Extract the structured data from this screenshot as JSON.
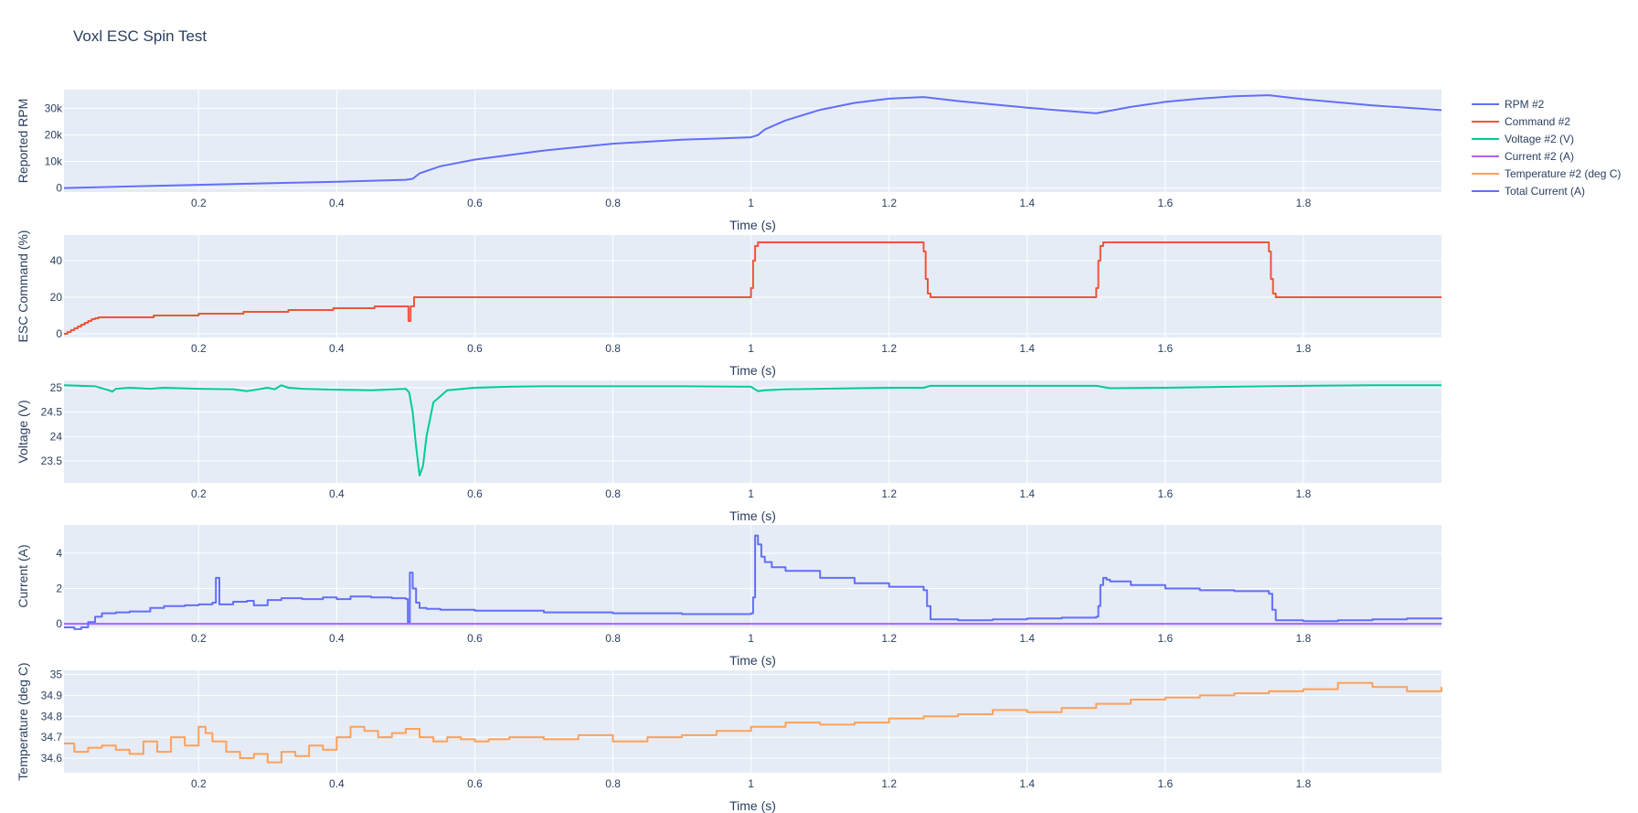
{
  "chart_data": {
    "title": "Voxl ESC Spin Test",
    "type": "line",
    "legend": {
      "placement": "right",
      "entries": [
        {
          "name": "RPM #2",
          "color": "#636efa"
        },
        {
          "name": "Command #2",
          "color": "#ef553b"
        },
        {
          "name": "Voltage #2 (V)",
          "color": "#00cc96"
        },
        {
          "name": "Current #2 (A)",
          "color": "#ab63fa"
        },
        {
          "name": "Temperature #2 (deg C)",
          "color": "#ffa15a"
        },
        {
          "name": "Total Current (A)",
          "color": "#636efa"
        }
      ]
    },
    "grid": true,
    "x_ticks": [
      "0.2",
      "0.4",
      "0.6",
      "0.8",
      "1",
      "1.2",
      "1.4",
      "1.6",
      "1.8"
    ],
    "x_range": [
      0.005,
      2.0
    ],
    "subplots": [
      {
        "ylabel": "Reported RPM",
        "xlabel": "Time (s)",
        "ylim": [
          -1500,
          37000
        ],
        "y_ticks": [
          {
            "value": 0,
            "label": "0"
          },
          {
            "value": 10000,
            "label": "10k"
          },
          {
            "value": 20000,
            "label": "20k"
          },
          {
            "value": 30000,
            "label": "30k"
          }
        ],
        "series": [
          {
            "name": "RPM #2",
            "color": "#636efa",
            "shape": "linear",
            "x": [
              0.005,
              0.1,
              0.2,
              0.3,
              0.4,
              0.5,
              0.51,
              0.52,
              0.55,
              0.6,
              0.7,
              0.8,
              0.9,
              0.95,
              1.0,
              1.01,
              1.02,
              1.05,
              1.1,
              1.15,
              1.2,
              1.25,
              1.3,
              1.4,
              1.5,
              1.55,
              1.6,
              1.65,
              1.7,
              1.75,
              1.8,
              1.9,
              2.0
            ],
            "y": [
              0,
              600,
              1200,
              1800,
              2400,
              3100,
              3500,
              5500,
              8200,
              10700,
              14100,
              16700,
              18200,
              18600,
              19100,
              19900,
              22000,
              25400,
              29400,
              32000,
              33600,
              34200,
              32700,
              30200,
              28100,
              30500,
              32400,
              33600,
              34500,
              34900,
              33400,
              31100,
              29300
            ]
          }
        ]
      },
      {
        "ylabel": "ESC Command (%)",
        "xlabel": "Time (s)",
        "ylim": [
          -2,
          54
        ],
        "y_ticks": [
          {
            "value": 0,
            "label": "0"
          },
          {
            "value": 20,
            "label": "20"
          },
          {
            "value": 40,
            "label": "40"
          }
        ],
        "series": [
          {
            "name": "Command #2",
            "color": "#ef553b",
            "shape": "hv",
            "x": [
              0.005,
              0.01,
              0.015,
              0.02,
              0.025,
              0.03,
              0.035,
              0.04,
              0.045,
              0.05,
              0.055,
              0.06,
              0.07,
              0.135,
              0.2,
              0.265,
              0.33,
              0.395,
              0.455,
              0.504,
              0.507,
              0.512,
              1.0,
              1.003,
              1.006,
              1.01,
              1.25,
              1.253,
              1.256,
              1.26,
              1.5,
              1.503,
              1.506,
              1.51,
              1.75,
              1.753,
              1.756,
              1.76,
              2.0
            ],
            "y": [
              0,
              1,
              2,
              3,
              4,
              5,
              6,
              7,
              8,
              8.5,
              9,
              9,
              9,
              10,
              11,
              12,
              13,
              14,
              15,
              7,
              15,
              20,
              25,
              40,
              48,
              50,
              45,
              30,
              22,
              20,
              25,
              40,
              48,
              50,
              45,
              30,
              22,
              20,
              20
            ]
          }
        ]
      },
      {
        "ylabel": "Voltage (V)",
        "xlabel": "Time (s)",
        "ylim": [
          23.05,
          25.15
        ],
        "y_ticks": [
          {
            "value": 23.5,
            "label": "23.5"
          },
          {
            "value": 24,
            "label": "24"
          },
          {
            "value": 24.5,
            "label": "24.5"
          },
          {
            "value": 25,
            "label": "25"
          }
        ],
        "series": [
          {
            "name": "Voltage #2 (V)",
            "color": "#00cc96",
            "shape": "linear",
            "x": [
              0.005,
              0.05,
              0.07,
              0.075,
              0.08,
              0.1,
              0.13,
              0.15,
              0.2,
              0.25,
              0.27,
              0.3,
              0.31,
              0.32,
              0.33,
              0.35,
              0.4,
              0.45,
              0.5,
              0.505,
              0.51,
              0.515,
              0.52,
              0.525,
              0.53,
              0.54,
              0.56,
              0.6,
              0.65,
              0.7,
              0.8,
              0.9,
              1.0,
              1.01,
              1.02,
              1.05,
              1.1,
              1.2,
              1.25,
              1.26,
              1.4,
              1.5,
              1.52,
              1.6,
              1.7,
              1.75,
              1.8,
              1.9,
              2.0
            ],
            "y": [
              25.05,
              25.03,
              24.95,
              24.92,
              24.98,
              25.0,
              24.98,
              25.0,
              24.98,
              24.97,
              24.93,
              25.0,
              24.97,
              25.05,
              25.0,
              24.98,
              24.96,
              24.95,
              24.98,
              24.9,
              24.5,
              23.8,
              23.2,
              23.4,
              24.0,
              24.7,
              24.95,
              25.0,
              25.02,
              25.03,
              25.03,
              25.03,
              25.02,
              24.93,
              24.95,
              24.97,
              24.98,
              25.0,
              25.0,
              25.04,
              25.04,
              25.04,
              24.99,
              25.0,
              25.02,
              25.03,
              25.04,
              25.05,
              25.05
            ]
          }
        ]
      },
      {
        "ylabel": "Current (A)",
        "xlabel": "Time (s)",
        "ylim": [
          -0.2,
          5.6
        ],
        "y_ticks": [
          {
            "value": 0,
            "label": "0"
          },
          {
            "value": 2,
            "label": "2"
          },
          {
            "value": 4,
            "label": "4"
          }
        ],
        "series": [
          {
            "name": "Current #2 (A)",
            "color": "#ab63fa",
            "shape": "linear",
            "x": [
              0.005,
              2.0
            ],
            "y": [
              0,
              0
            ]
          },
          {
            "name": "Total Current (A)",
            "color": "#636efa",
            "shape": "hv",
            "x": [
              0.005,
              0.02,
              0.03,
              0.04,
              0.05,
              0.06,
              0.08,
              0.1,
              0.13,
              0.15,
              0.18,
              0.2,
              0.22,
              0.225,
              0.23,
              0.25,
              0.27,
              0.28,
              0.3,
              0.32,
              0.35,
              0.38,
              0.4,
              0.42,
              0.45,
              0.48,
              0.5,
              0.503,
              0.506,
              0.51,
              0.515,
              0.52,
              0.53,
              0.55,
              0.6,
              0.7,
              0.8,
              0.9,
              1.0,
              1.003,
              1.006,
              1.01,
              1.015,
              1.02,
              1.03,
              1.05,
              1.1,
              1.15,
              1.2,
              1.25,
              1.255,
              1.26,
              1.3,
              1.35,
              1.4,
              1.45,
              1.5,
              1.503,
              1.506,
              1.51,
              1.515,
              1.52,
              1.55,
              1.6,
              1.65,
              1.7,
              1.75,
              1.755,
              1.76,
              1.8,
              1.85,
              1.9,
              1.95,
              2.0
            ],
            "y": [
              -0.2,
              -0.3,
              -0.2,
              0.1,
              0.4,
              0.6,
              0.65,
              0.7,
              0.9,
              1.0,
              1.05,
              1.1,
              1.2,
              2.6,
              1.1,
              1.25,
              1.3,
              1.05,
              1.35,
              1.45,
              1.4,
              1.5,
              1.4,
              1.55,
              1.5,
              1.45,
              1.4,
              0.1,
              2.9,
              2.0,
              1.2,
              0.9,
              0.85,
              0.8,
              0.75,
              0.65,
              0.6,
              0.55,
              0.6,
              1.5,
              5.0,
              4.5,
              3.8,
              3.5,
              3.2,
              3.0,
              2.6,
              2.3,
              2.1,
              1.9,
              1.0,
              0.25,
              0.2,
              0.25,
              0.3,
              0.35,
              0.4,
              1.0,
              2.2,
              2.6,
              2.5,
              2.4,
              2.2,
              2.0,
              1.9,
              1.85,
              1.7,
              0.8,
              0.2,
              0.15,
              0.2,
              0.25,
              0.3,
              0.35
            ]
          }
        ]
      },
      {
        "ylabel": "Temperature (deg C)",
        "xlabel": "Time (s)",
        "ylim": [
          34.53,
          35.02
        ],
        "y_ticks": [
          {
            "value": 34.6,
            "label": "34.6"
          },
          {
            "value": 34.7,
            "label": "34.7"
          },
          {
            "value": 34.8,
            "label": "34.8"
          },
          {
            "value": 34.9,
            "label": "34.9"
          },
          {
            "value": 35,
            "label": "35"
          }
        ],
        "series": [
          {
            "name": "Temperature #2 (deg C)",
            "color": "#ffa15a",
            "shape": "hv",
            "x": [
              0.005,
              0.02,
              0.04,
              0.06,
              0.08,
              0.1,
              0.12,
              0.14,
              0.16,
              0.18,
              0.2,
              0.21,
              0.22,
              0.24,
              0.26,
              0.28,
              0.3,
              0.32,
              0.34,
              0.36,
              0.38,
              0.4,
              0.42,
              0.44,
              0.46,
              0.48,
              0.5,
              0.52,
              0.54,
              0.56,
              0.58,
              0.6,
              0.62,
              0.65,
              0.7,
              0.75,
              0.8,
              0.85,
              0.9,
              0.95,
              1.0,
              1.05,
              1.1,
              1.15,
              1.2,
              1.25,
              1.3,
              1.35,
              1.4,
              1.45,
              1.5,
              1.55,
              1.6,
              1.65,
              1.7,
              1.75,
              1.8,
              1.85,
              1.9,
              1.95,
              2.0
            ],
            "y": [
              34.67,
              34.63,
              34.65,
              34.66,
              34.64,
              34.62,
              34.68,
              34.63,
              34.7,
              34.66,
              34.75,
              34.72,
              34.68,
              34.63,
              34.6,
              34.62,
              34.58,
              34.63,
              34.61,
              34.66,
              34.64,
              34.7,
              34.75,
              34.73,
              34.7,
              34.72,
              34.74,
              34.7,
              34.68,
              34.7,
              34.69,
              34.68,
              34.69,
              34.7,
              34.69,
              34.71,
              34.68,
              34.7,
              34.71,
              34.73,
              34.75,
              34.77,
              34.76,
              34.77,
              34.79,
              34.8,
              34.81,
              34.83,
              34.82,
              34.84,
              34.86,
              34.88,
              34.89,
              34.9,
              34.91,
              34.92,
              34.93,
              34.96,
              34.94,
              34.92,
              34.94
            ]
          }
        ]
      }
    ]
  }
}
